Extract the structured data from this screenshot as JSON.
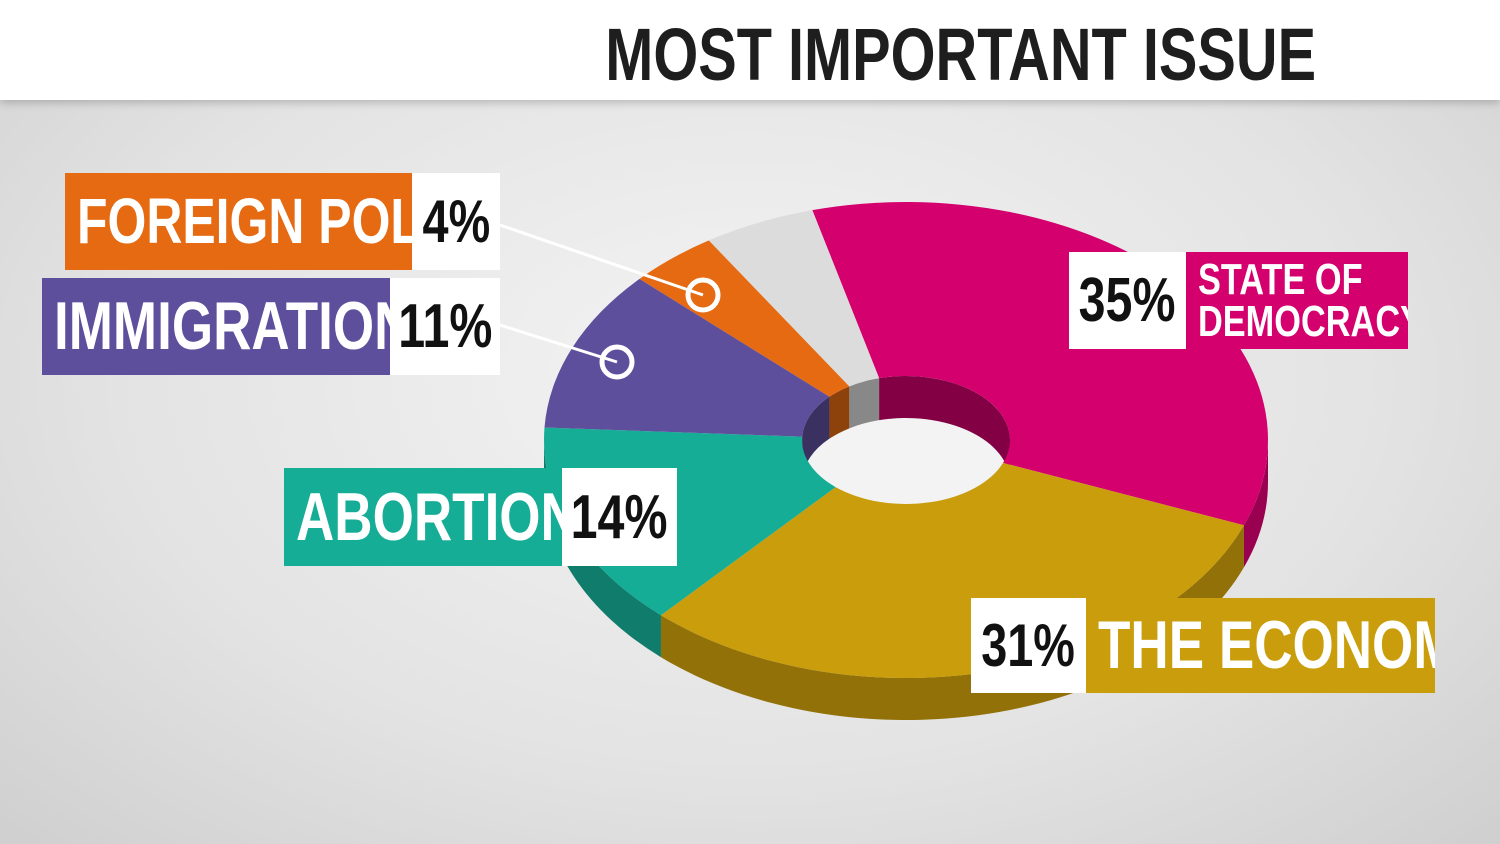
{
  "chart_data": {
    "type": "pie",
    "title": "MOST IMPORTANT ISSUE",
    "categories": [
      "STATE OF DEMOCRACY",
      "THE ECONOMY",
      "ABORTION",
      "IMMIGRATION",
      "FOREIGN POLICY",
      null
    ],
    "values": [
      35,
      31,
      14,
      11,
      4,
      5
    ],
    "value_labels": [
      "35%",
      "31%",
      "14%",
      "11%",
      "4%",
      null
    ],
    "colors": [
      "#d4006e",
      "#c99d0b",
      "#16ad96",
      "#5e4f9d",
      "#e56a12",
      "#dcdcdc"
    ],
    "donut": true
  }
}
